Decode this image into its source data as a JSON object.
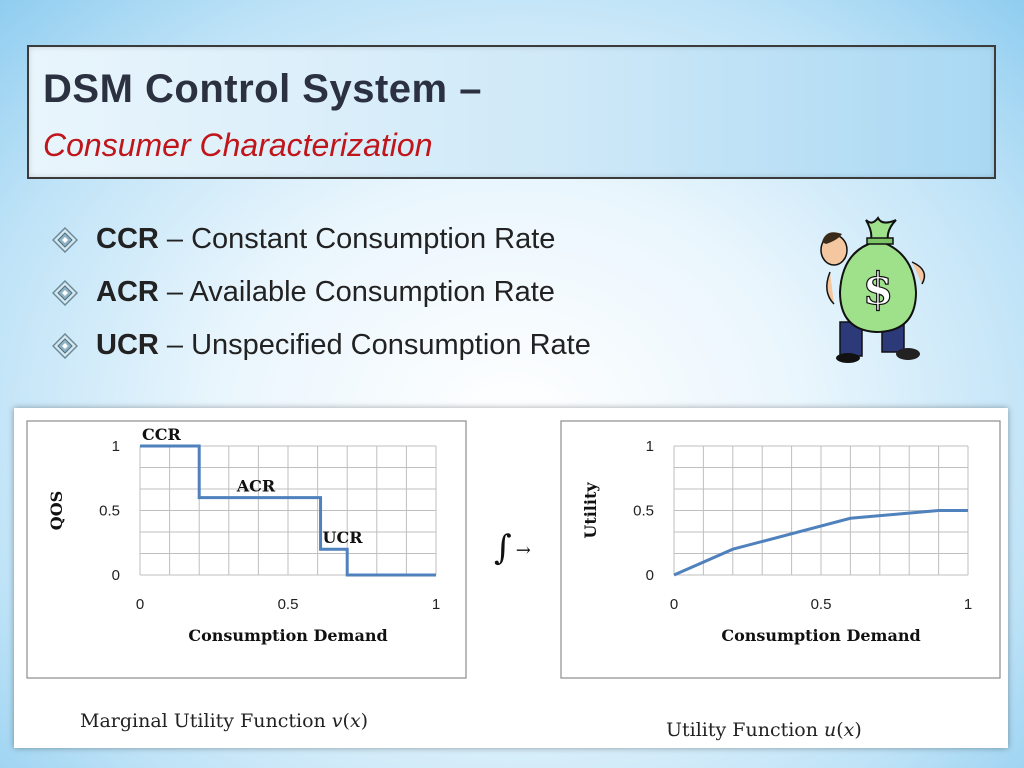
{
  "slide": {
    "title": "DSM Control System –",
    "subtitle": "Consumer Characterization"
  },
  "bullets": [
    {
      "abbr": "CCR",
      "text": " – Constant Consumption Rate"
    },
    {
      "abbr": "ACR",
      "text": " – Available Consumption Rate"
    },
    {
      "abbr": "UCR",
      "text": " – Unspecified Consumption Rate"
    }
  ],
  "integral_symbol": "∫",
  "arrow_symbol": "→",
  "captions": {
    "left": "Marginal Utility Function 𝑣(𝑥)",
    "right": "Utility Function 𝑢(𝑥)"
  },
  "colors": {
    "line": "#4f81bd",
    "grid": "#bfbfbf",
    "title_red": "#c0151b"
  },
  "chart_data": [
    {
      "type": "line",
      "title": "",
      "xlabel": "Consumption Demand",
      "ylabel": "QOS",
      "xlim": [
        0,
        1
      ],
      "ylim": [
        0,
        1
      ],
      "x_ticks": [
        "0",
        "0.5",
        "1"
      ],
      "y_ticks": [
        "0",
        "0.5",
        "1"
      ],
      "grid": true,
      "series": [
        {
          "x": [
            0,
            0.2,
            0.2,
            0.61,
            0.61,
            0.7,
            0.7,
            1.0
          ],
          "y": [
            1,
            1,
            0.6,
            0.6,
            0.2,
            0.2,
            0,
            0
          ]
        }
      ],
      "annotations": [
        {
          "text": "CCR",
          "x": 0.0,
          "y": 1.0
        },
        {
          "text": "ACR",
          "x": 0.32,
          "y": 0.6
        },
        {
          "text": "UCR",
          "x": 0.61,
          "y": 0.2
        }
      ]
    },
    {
      "type": "line",
      "title": "",
      "xlabel": "Consumption Demand",
      "ylabel": "Utility",
      "xlim": [
        0,
        1
      ],
      "ylim": [
        0,
        1
      ],
      "x_ticks": [
        "0",
        "0.5",
        "1"
      ],
      "y_ticks": [
        "0",
        "0.5",
        "1"
      ],
      "grid": true,
      "series": [
        {
          "x": [
            0,
            0.2,
            0.6,
            0.9,
            1.0
          ],
          "y": [
            0,
            0.2,
            0.44,
            0.5,
            0.5
          ]
        }
      ],
      "annotations": []
    }
  ]
}
